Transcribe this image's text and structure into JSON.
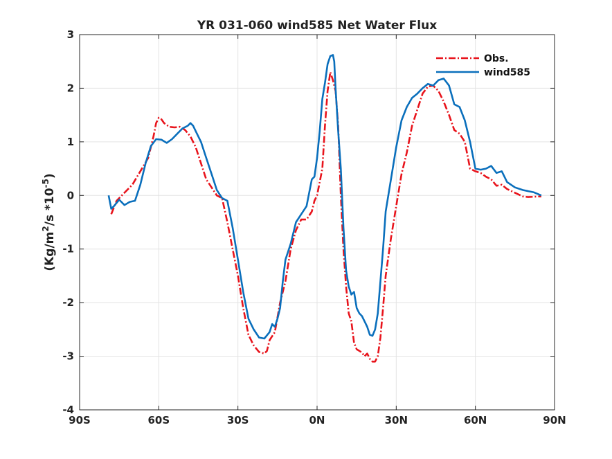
{
  "chart_data": {
    "type": "line",
    "title": "YR 031-060 wind585  Net Water Flux",
    "xlabel": "",
    "ylabel": "(Kg/m^2/s *10^-5)",
    "xlim": [
      -90,
      90
    ],
    "ylim": [
      -4,
      3
    ],
    "x_ticks": [
      -90,
      -60,
      -30,
      0,
      30,
      60,
      90
    ],
    "x_tick_labels": [
      "90S",
      "60S",
      "30S",
      "0N",
      "30N",
      "60N",
      "90N"
    ],
    "y_ticks": [
      -4,
      -3,
      -2,
      -1,
      0,
      1,
      2,
      3
    ],
    "y_tick_labels": [
      "-4",
      "-3",
      "-2",
      "-1",
      "0",
      "1",
      "2",
      "3"
    ],
    "grid": true,
    "legend_position": "top-right",
    "series": [
      {
        "name": "Obs.",
        "color": "#e8141c",
        "style": "dashdot",
        "x": [
          -78,
          -76,
          -73,
          -70,
          -67,
          -64,
          -62,
          -61,
          -60,
          -59,
          -58,
          -56,
          -54,
          -52,
          -50,
          -48,
          -46,
          -44,
          -42,
          -40,
          -38,
          -36,
          -34,
          -32,
          -30,
          -28,
          -26,
          -24,
          -22,
          -20,
          -19,
          -18,
          -16,
          -14,
          -12,
          -10,
          -8,
          -6,
          -4,
          -2,
          -1,
          0,
          1,
          2,
          3,
          4,
          5,
          6,
          7,
          8,
          9,
          10,
          11,
          12,
          13,
          14,
          15,
          16,
          17,
          18,
          19,
          20,
          21,
          22,
          23,
          24,
          25,
          26,
          28,
          30,
          32,
          34,
          36,
          38,
          40,
          42,
          44,
          46,
          48,
          50,
          52,
          54,
          56,
          58,
          60,
          62,
          64,
          66,
          68,
          70,
          72,
          75,
          78,
          80,
          84,
          85
        ],
        "y": [
          -0.35,
          -0.1,
          0.05,
          0.2,
          0.45,
          0.7,
          1.1,
          1.35,
          1.45,
          1.42,
          1.35,
          1.28,
          1.27,
          1.28,
          1.22,
          1.1,
          0.9,
          0.6,
          0.3,
          0.15,
          0.0,
          -0.05,
          -0.5,
          -1.0,
          -1.5,
          -2.1,
          -2.6,
          -2.8,
          -2.92,
          -2.95,
          -2.9,
          -2.7,
          -2.55,
          -2.0,
          -1.6,
          -1.0,
          -0.65,
          -0.45,
          -0.45,
          -0.3,
          -0.1,
          0.0,
          0.25,
          0.5,
          1.3,
          1.95,
          2.3,
          2.15,
          1.95,
          1.3,
          0.0,
          -1.0,
          -1.7,
          -2.2,
          -2.35,
          -2.75,
          -2.87,
          -2.9,
          -2.93,
          -3.0,
          -2.95,
          -3.05,
          -3.1,
          -3.1,
          -3.0,
          -2.65,
          -2.1,
          -1.5,
          -0.8,
          -0.2,
          0.4,
          0.8,
          1.3,
          1.6,
          1.9,
          2.03,
          2.05,
          1.95,
          1.75,
          1.5,
          1.22,
          1.15,
          1.0,
          0.5,
          0.45,
          0.42,
          0.35,
          0.3,
          0.18,
          0.2,
          0.12,
          0.05,
          -0.02,
          -0.03,
          -0.02,
          -0.02
        ]
      },
      {
        "name": "wind585",
        "color": "#0a6fbc",
        "style": "solid",
        "x": [
          -79,
          -78,
          -77,
          -75,
          -73,
          -71,
          -69,
          -67,
          -65,
          -63,
          -61,
          -59,
          -57,
          -55,
          -53,
          -51,
          -49,
          -48,
          -47,
          -46,
          -44,
          -42,
          -40,
          -38,
          -36,
          -34,
          -32,
          -30,
          -28,
          -26,
          -24,
          -22,
          -20,
          -18,
          -17,
          -16,
          -15,
          -14,
          -13,
          -12,
          -10,
          -8,
          -6,
          -4,
          -3,
          -2,
          -1,
          0,
          1,
          2,
          3,
          4,
          5,
          6,
          6.5,
          7,
          8,
          9,
          10,
          11,
          12,
          13,
          14,
          15,
          16,
          17,
          18,
          19,
          20,
          21,
          22,
          23,
          24,
          25,
          26,
          28,
          30,
          32,
          34,
          36,
          38,
          40,
          42,
          44,
          46,
          48,
          50,
          52,
          54,
          56,
          58,
          60,
          62,
          64,
          66,
          68,
          70,
          72,
          75,
          78,
          80,
          82,
          84,
          85
        ],
        "y": [
          0.0,
          -0.25,
          -0.2,
          -0.08,
          -0.18,
          -0.12,
          -0.1,
          0.2,
          0.6,
          0.92,
          1.05,
          1.04,
          0.98,
          1.05,
          1.15,
          1.25,
          1.3,
          1.35,
          1.3,
          1.2,
          1.0,
          0.7,
          0.4,
          0.1,
          -0.05,
          -0.1,
          -0.6,
          -1.2,
          -1.8,
          -2.3,
          -2.5,
          -2.65,
          -2.67,
          -2.55,
          -2.4,
          -2.45,
          -2.3,
          -2.1,
          -1.6,
          -1.2,
          -0.9,
          -0.5,
          -0.35,
          -0.2,
          0.05,
          0.3,
          0.35,
          0.7,
          1.2,
          1.8,
          2.1,
          2.45,
          2.6,
          2.62,
          2.5,
          2.0,
          1.2,
          0.5,
          -0.6,
          -1.4,
          -1.7,
          -1.85,
          -1.8,
          -2.1,
          -2.2,
          -2.25,
          -2.35,
          -2.45,
          -2.6,
          -2.62,
          -2.5,
          -2.2,
          -1.6,
          -1.0,
          -0.3,
          0.3,
          0.9,
          1.4,
          1.65,
          1.82,
          1.9,
          2.0,
          2.08,
          2.05,
          2.15,
          2.18,
          2.05,
          1.7,
          1.65,
          1.4,
          1.0,
          0.5,
          0.48,
          0.5,
          0.55,
          0.42,
          0.45,
          0.25,
          0.15,
          0.1,
          0.08,
          0.06,
          0.02,
          0.0
        ]
      }
    ]
  }
}
